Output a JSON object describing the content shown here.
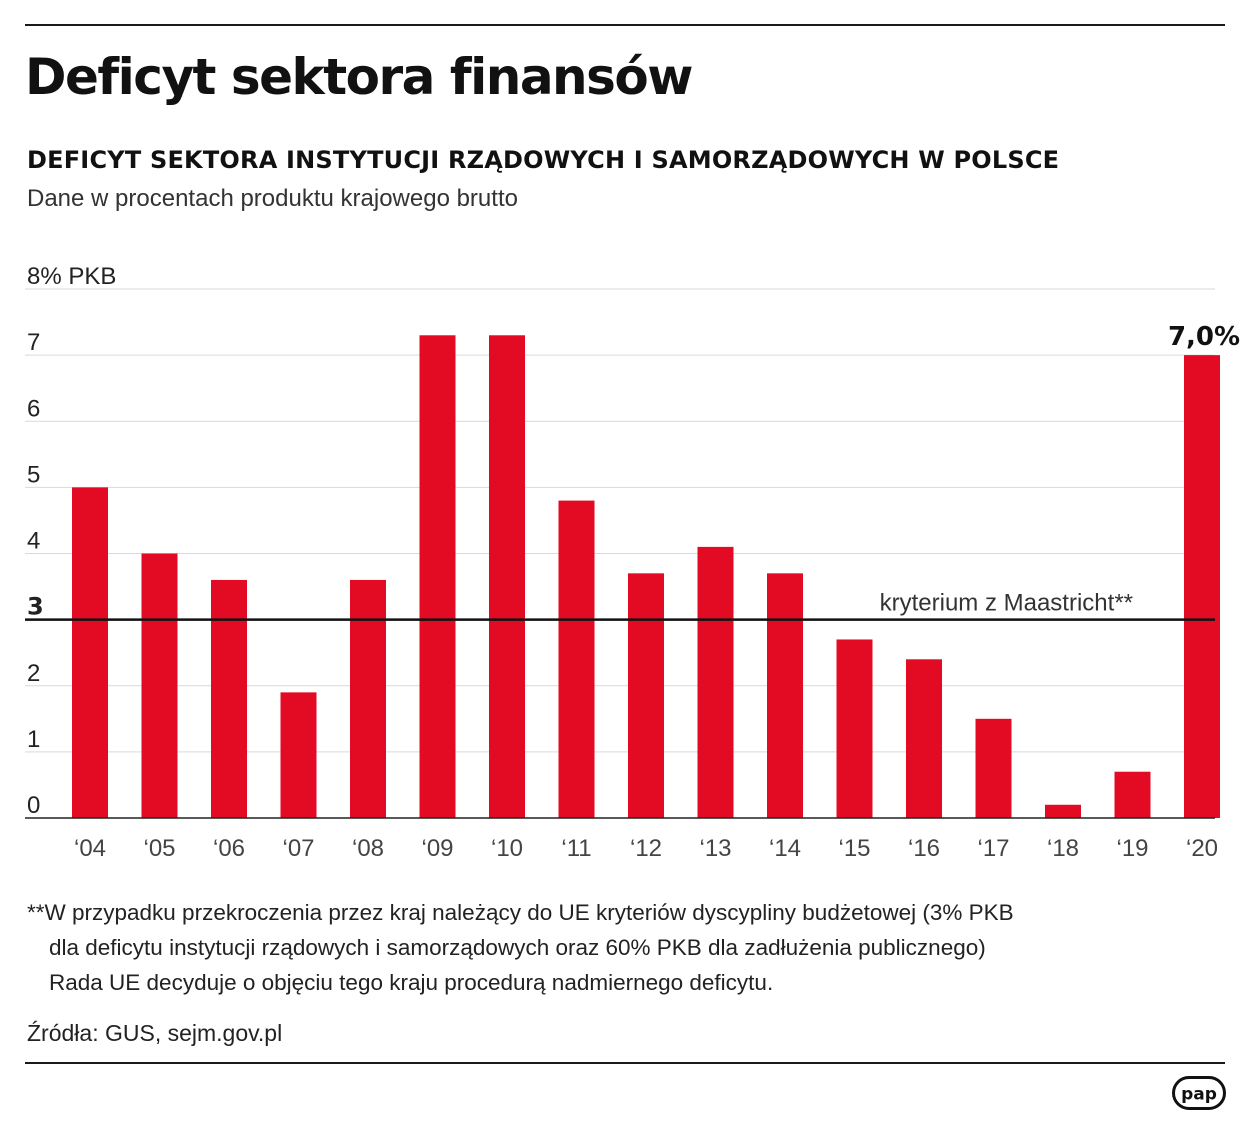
{
  "title": "Deficyt sektora finansów",
  "subtitle": "DEFICYT SEKTORA INSTYTUCJI RZĄDOWYCH I SAMORZĄDOWYCH W POLSCE",
  "description": "Dane w procentach produktu krajowego brutto",
  "chart_data": {
    "type": "bar",
    "categories": [
      "‘04",
      "‘05",
      "‘06",
      "‘07",
      "‘08",
      "‘09",
      "‘10",
      "‘11",
      "‘12",
      "‘13",
      "‘14",
      "‘15",
      "‘16",
      "‘17",
      "‘18",
      "‘19",
      "‘20"
    ],
    "values": [
      5.0,
      4.0,
      3.6,
      1.9,
      3.6,
      7.3,
      7.3,
      4.8,
      3.7,
      4.1,
      3.7,
      2.7,
      2.4,
      1.5,
      0.2,
      0.7,
      7.0
    ],
    "ylim": [
      0,
      8
    ],
    "y_ticks": [
      "0",
      "1",
      "2",
      "3",
      "4",
      "5",
      "6",
      "7",
      "8% PKB"
    ],
    "bar_color": "#e30b24",
    "grid": true,
    "reference_line": {
      "value": 3,
      "label": "kryterium z Maastricht**",
      "color": "#111111"
    },
    "highlight_label": {
      "index": 16,
      "text": "7,0%"
    }
  },
  "footnote": {
    "lines": [
      "**W przypadku przekroczenia przez kraj należący do UE kryteriów dyscypliny budżetowej (3% PKB",
      "dla deficytu instytucji rządowych i samorządowych oraz 60% PKB dla zadłużenia publicznego)",
      "Rada UE decyduje o objęciu tego kraju procedurą nadmiernego deficytu."
    ]
  },
  "source": "Źródła: GUS, sejm.gov.pl",
  "logo_text": "pap"
}
